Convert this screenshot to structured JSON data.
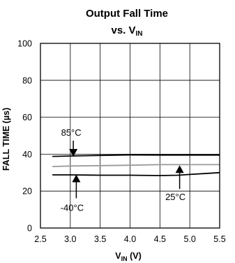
{
  "chart_data": {
    "type": "line",
    "title_line1": "Output Fall Time",
    "title_line2_prefix": "vs. V",
    "title_line2_sub": "IN",
    "xlabel_main": "V",
    "xlabel_sub": "IN",
    "xlabel_unit": " (V)",
    "ylabel": "FALL TIME (µs)",
    "xlim": [
      2.5,
      5.5
    ],
    "ylim": [
      0,
      100
    ],
    "x_ticks": [
      "2.5",
      "3.0",
      "3.5",
      "4.0",
      "4.5",
      "5.0",
      "5.5"
    ],
    "y_ticks": [
      "0",
      "20",
      "40",
      "60",
      "80",
      "100"
    ],
    "grid": true,
    "series": [
      {
        "name": "85°C",
        "color": "#000000",
        "x": [
          2.7,
          3.0,
          3.5,
          4.0,
          4.5,
          5.0,
          5.5
        ],
        "y": [
          38.8,
          39.0,
          39.3,
          39.6,
          39.5,
          39.5,
          39.5
        ]
      },
      {
        "color": "#999999",
        "x": [
          2.7,
          3.0,
          3.5,
          4.0,
          4.5,
          5.0,
          5.5
        ],
        "y": [
          33.3,
          33.6,
          33.8,
          34.0,
          34.3,
          34.3,
          34.3
        ]
      },
      {
        "name": "-40°C",
        "color": "#000000",
        "x": [
          2.7,
          3.0,
          3.5,
          4.0,
          4.5,
          4.8,
          5.0,
          5.5
        ],
        "y": [
          28.8,
          28.8,
          28.6,
          28.6,
          28.4,
          28.6,
          29.0,
          30.0
        ]
      }
    ],
    "annotations": [
      {
        "text": "85°C",
        "arrow_to": [
          3.05,
          39.0
        ],
        "arrow_dir": "down"
      },
      {
        "text": "-40°C",
        "arrow_to": [
          3.1,
          29.0
        ],
        "arrow_dir": "up"
      },
      {
        "text": "25°C",
        "arrow_to": [
          4.83,
          34.0
        ],
        "arrow_dir": "up"
      }
    ]
  }
}
